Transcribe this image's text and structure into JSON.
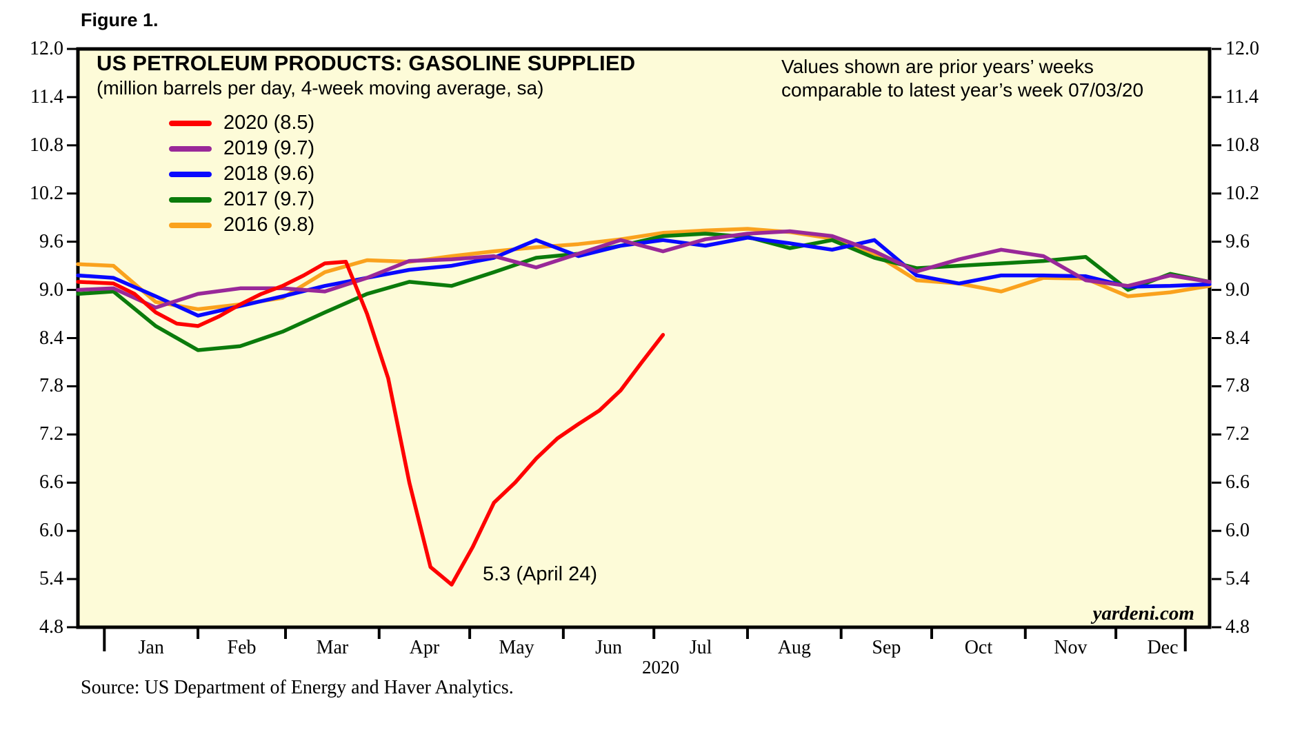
{
  "figure_label": "Figure 1.",
  "chart": {
    "title": "US PETROLEUM PRODUCTS: GASOLINE SUPPLIED",
    "subtitle": "(million barrels per day, 4-week moving average, sa)",
    "note_line1": "Values shown are prior years’ weeks",
    "note_line2": "comparable to latest year’s week 07/03/20",
    "annotation_label": "5.3 (April 24)",
    "watermark": "yardeni.com",
    "year_label": "2020",
    "source": "Source: US Department of Energy and Haver Analytics.",
    "background": "#FDFBD8",
    "frame_color": "#000000"
  },
  "legend": [
    {
      "label": "2020 (8.5)",
      "color": "#FE0000"
    },
    {
      "label": "2019 (9.7)",
      "color": "#992899"
    },
    {
      "label": "2018 (9.6)",
      "color": "#0909FF"
    },
    {
      "label": "2017 (9.7)",
      "color": "#0B7B0B"
    },
    {
      "label": "2016 (9.8)",
      "color": "#FAA21E"
    }
  ],
  "chart_data": {
    "type": "line",
    "title": "US PETROLEUM PRODUCTS: GASOLINE SUPPLIED",
    "subtitle": "(million barrels per day, 4-week moving average, sa)",
    "ylabel": "million barrels per day",
    "ylim": [
      4.8,
      12.0
    ],
    "ytick_step": 0.6,
    "yticks": [
      "12.0",
      "11.4",
      "10.8",
      "10.2",
      "9.6",
      "9.0",
      "8.4",
      "7.8",
      "7.2",
      "6.6",
      "6.0",
      "5.4",
      "4.8"
    ],
    "grid": "off",
    "legend_position": "top-left-inside",
    "x_unit": "week of year",
    "x_range_weeks": [
      -1.25,
      52.29
    ],
    "month_boundaries_days": [
      0,
      31,
      60,
      91,
      121,
      152,
      182,
      213,
      244,
      274,
      305,
      335,
      366
    ],
    "months": [
      "Jan",
      "Feb",
      "Mar",
      "Apr",
      "May",
      "Jun",
      "Jul",
      "Aug",
      "Sep",
      "Oct",
      "Nov",
      "Dec"
    ],
    "year_tick_weeks": [
      0,
      51.14
    ],
    "annotation": {
      "text": "5.3 (April 24)",
      "x_week": 16.43,
      "value": 5.3,
      "date": "April 24"
    },
    "series": [
      {
        "name": "2020 (8.5)",
        "year": "2020",
        "color": "#FE0000",
        "latest_comparable": 8.5,
        "x": [
          -1.25,
          0.43,
          1.43,
          2.43,
          3.43,
          4.43,
          5.43,
          6.43,
          7.43,
          8.43,
          9.43,
          10.43,
          11.43,
          12.43,
          13.43,
          14.43,
          15.43,
          16.43,
          17.43,
          18.43,
          19.43,
          20.43,
          21.43,
          22.43,
          23.43,
          24.43,
          25.43,
          26.43
        ],
        "values": [
          9.1,
          9.08,
          8.95,
          8.72,
          8.58,
          8.55,
          8.67,
          8.82,
          8.95,
          9.05,
          9.18,
          9.33,
          9.35,
          8.7,
          7.9,
          6.6,
          5.55,
          5.33,
          5.8,
          6.35,
          6.6,
          6.9,
          7.15,
          7.33,
          7.5,
          7.75,
          8.1,
          8.44
        ]
      },
      {
        "name": "2019 (9.7)",
        "year": "2019",
        "color": "#992899",
        "latest_comparable": 9.7,
        "x": [
          -1.25,
          0.43,
          2.43,
          4.43,
          6.43,
          8.43,
          10.43,
          12.43,
          14.43,
          16.43,
          18.43,
          20.43,
          22.43,
          24.43,
          26.43,
          28.43,
          30.43,
          32.43,
          34.43,
          36.43,
          38.43,
          40.43,
          42.43,
          44.43,
          46.43,
          48.43,
          50.43,
          52.29
        ],
        "values": [
          9.0,
          9.02,
          8.78,
          8.95,
          9.02,
          9.02,
          8.98,
          9.15,
          9.36,
          9.38,
          9.42,
          9.28,
          9.45,
          9.62,
          9.48,
          9.63,
          9.7,
          9.73,
          9.67,
          9.48,
          9.23,
          9.38,
          9.5,
          9.42,
          9.12,
          9.05,
          9.18,
          9.1
        ]
      },
      {
        "name": "2018 (9.6)",
        "year": "2018",
        "color": "#0909FF",
        "latest_comparable": 9.6,
        "x": [
          -1.25,
          0.43,
          2.43,
          4.43,
          6.43,
          8.43,
          10.43,
          12.43,
          14.43,
          16.43,
          18.43,
          20.43,
          22.43,
          24.43,
          26.43,
          28.43,
          30.43,
          32.43,
          34.43,
          36.43,
          38.43,
          40.43,
          42.43,
          44.43,
          46.43,
          48.43,
          50.43,
          52.29
        ],
        "values": [
          9.18,
          9.15,
          8.92,
          8.68,
          8.8,
          8.92,
          9.05,
          9.15,
          9.25,
          9.3,
          9.4,
          9.62,
          9.42,
          9.55,
          9.62,
          9.55,
          9.65,
          9.58,
          9.5,
          9.62,
          9.18,
          9.08,
          9.18,
          9.18,
          9.17,
          9.04,
          9.05,
          9.07
        ]
      },
      {
        "name": "2017 (9.7)",
        "year": "2017",
        "color": "#0B7B0B",
        "latest_comparable": 9.7,
        "x": [
          -1.25,
          0.43,
          2.43,
          4.43,
          6.43,
          8.43,
          10.43,
          12.43,
          14.43,
          16.43,
          18.43,
          20.43,
          22.43,
          24.43,
          26.43,
          28.43,
          30.43,
          32.43,
          34.43,
          36.43,
          38.43,
          40.43,
          42.43,
          44.43,
          46.43,
          48.43,
          50.43,
          52.29
        ],
        "values": [
          8.95,
          8.98,
          8.55,
          8.25,
          8.3,
          8.48,
          8.72,
          8.95,
          9.1,
          9.05,
          9.22,
          9.4,
          9.45,
          9.55,
          9.67,
          9.7,
          9.66,
          9.52,
          9.62,
          9.4,
          9.27,
          9.3,
          9.33,
          9.36,
          9.41,
          9.0,
          9.2,
          9.1
        ]
      },
      {
        "name": "2016 (9.8)",
        "year": "2016",
        "color": "#FAA21E",
        "latest_comparable": 9.8,
        "x": [
          -1.25,
          0.43,
          2.43,
          4.43,
          6.43,
          8.43,
          10.43,
          12.43,
          14.43,
          16.43,
          18.43,
          20.43,
          22.43,
          24.43,
          26.43,
          28.43,
          30.43,
          32.43,
          34.43,
          36.43,
          38.43,
          40.43,
          42.43,
          44.43,
          46.43,
          48.43,
          50.43,
          52.29
        ],
        "values": [
          9.32,
          9.3,
          8.85,
          8.76,
          8.82,
          8.9,
          9.22,
          9.37,
          9.35,
          9.42,
          9.48,
          9.53,
          9.57,
          9.63,
          9.71,
          9.74,
          9.76,
          9.72,
          9.64,
          9.45,
          9.12,
          9.08,
          8.98,
          9.15,
          9.14,
          8.92,
          8.97,
          9.05
        ]
      }
    ]
  }
}
